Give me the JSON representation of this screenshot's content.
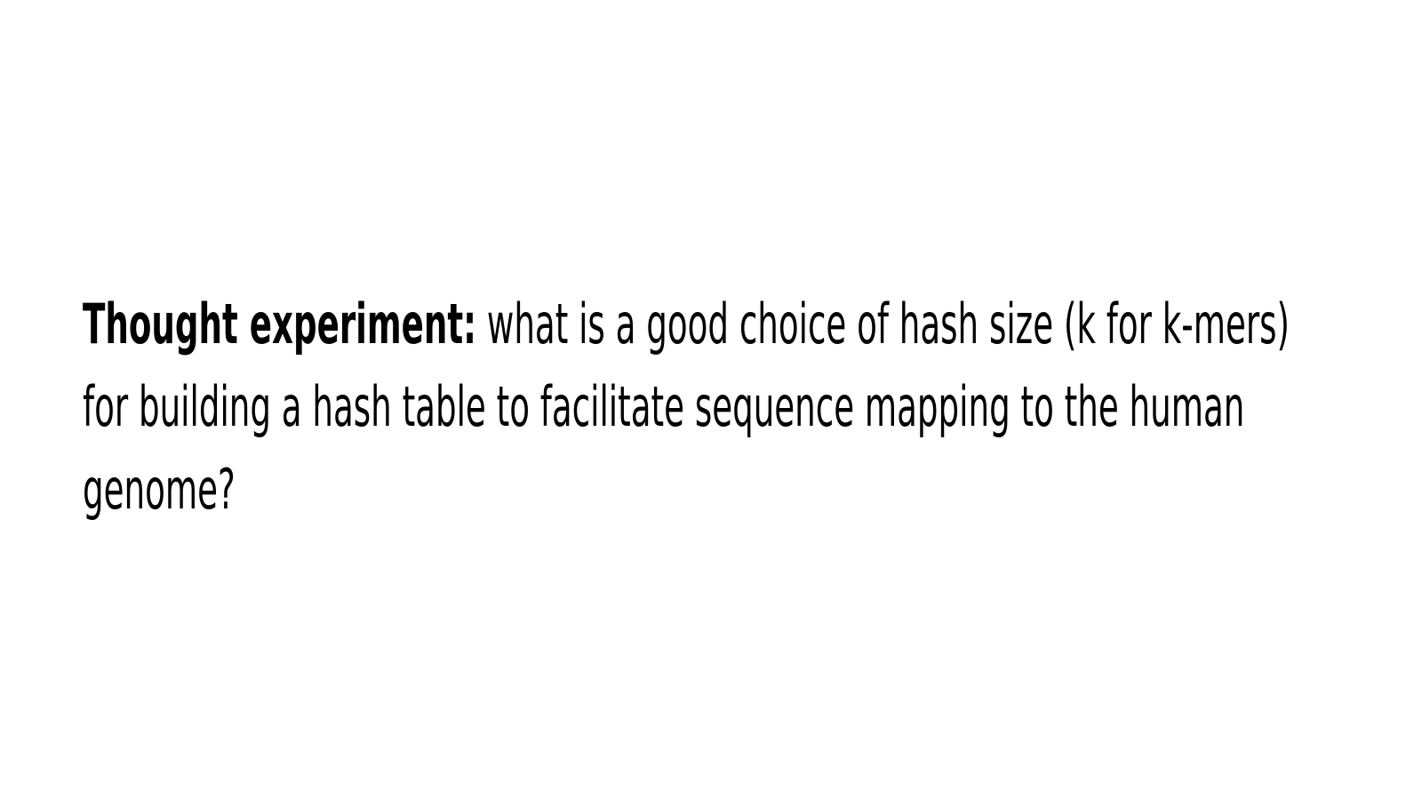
{
  "slide": {
    "lead": "Thought experiment:",
    "question": "what is a good choice of hash size (k for k-mers) for building a hash table to facilitate sequence mapping to the human genome?"
  },
  "colors": {
    "background": "#ffffff",
    "text": "#000000"
  }
}
